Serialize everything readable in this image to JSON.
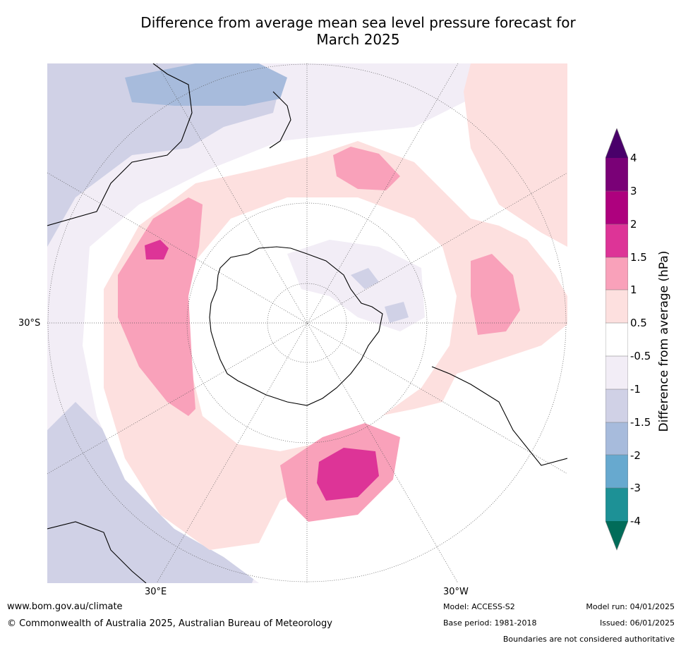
{
  "title_line1": "Difference from average mean sea level pressure forecast for",
  "title_line2": "March 2025",
  "map": {
    "projection": "south polar stereographic",
    "lat_labels": [
      "30°S"
    ],
    "lon_labels": [
      "30°E",
      "30°W"
    ],
    "colors": {
      "lt_-1.5": "#a7bbdc",
      "-1.5_-1": "#d0d1e6",
      "-1_-0.5": "#f2edf6",
      "-0.5_0.5": "#ffffff",
      "0.5_1": "#fde0df",
      "1_1.5": "#f9a1ba",
      "1.5_2": "#dd3497",
      "coast": "#000000",
      "graticule": "#555555"
    }
  },
  "colorbar": {
    "label": "Difference from average (hPa)",
    "ticks": [
      "4",
      "3",
      "2",
      "1.5",
      "1",
      "0.5",
      "-0.5",
      "-1",
      "-1.5",
      "-2",
      "-3",
      "-4"
    ],
    "colors": [
      "#49006a",
      "#7a0177",
      "#ae017e",
      "#dd3497",
      "#f9a1ba",
      "#fde0df",
      "#ffffff",
      "#f2edf6",
      "#d0d1e6",
      "#a7bbdc",
      "#67a9cf",
      "#1d9196",
      "#016c59"
    ]
  },
  "footer": {
    "website": "www.bom.gov.au/climate",
    "copyright": "© Commonwealth of Australia 2025, Australian Bureau of Meteorology",
    "model": "Model: ACCESS-S2",
    "base_period": "Base period: 1981-2018",
    "model_run": "Model run: 04/01/2025",
    "issued": "Issued: 06/01/2025",
    "disclaimer": "Boundaries are not considered authoritative"
  }
}
